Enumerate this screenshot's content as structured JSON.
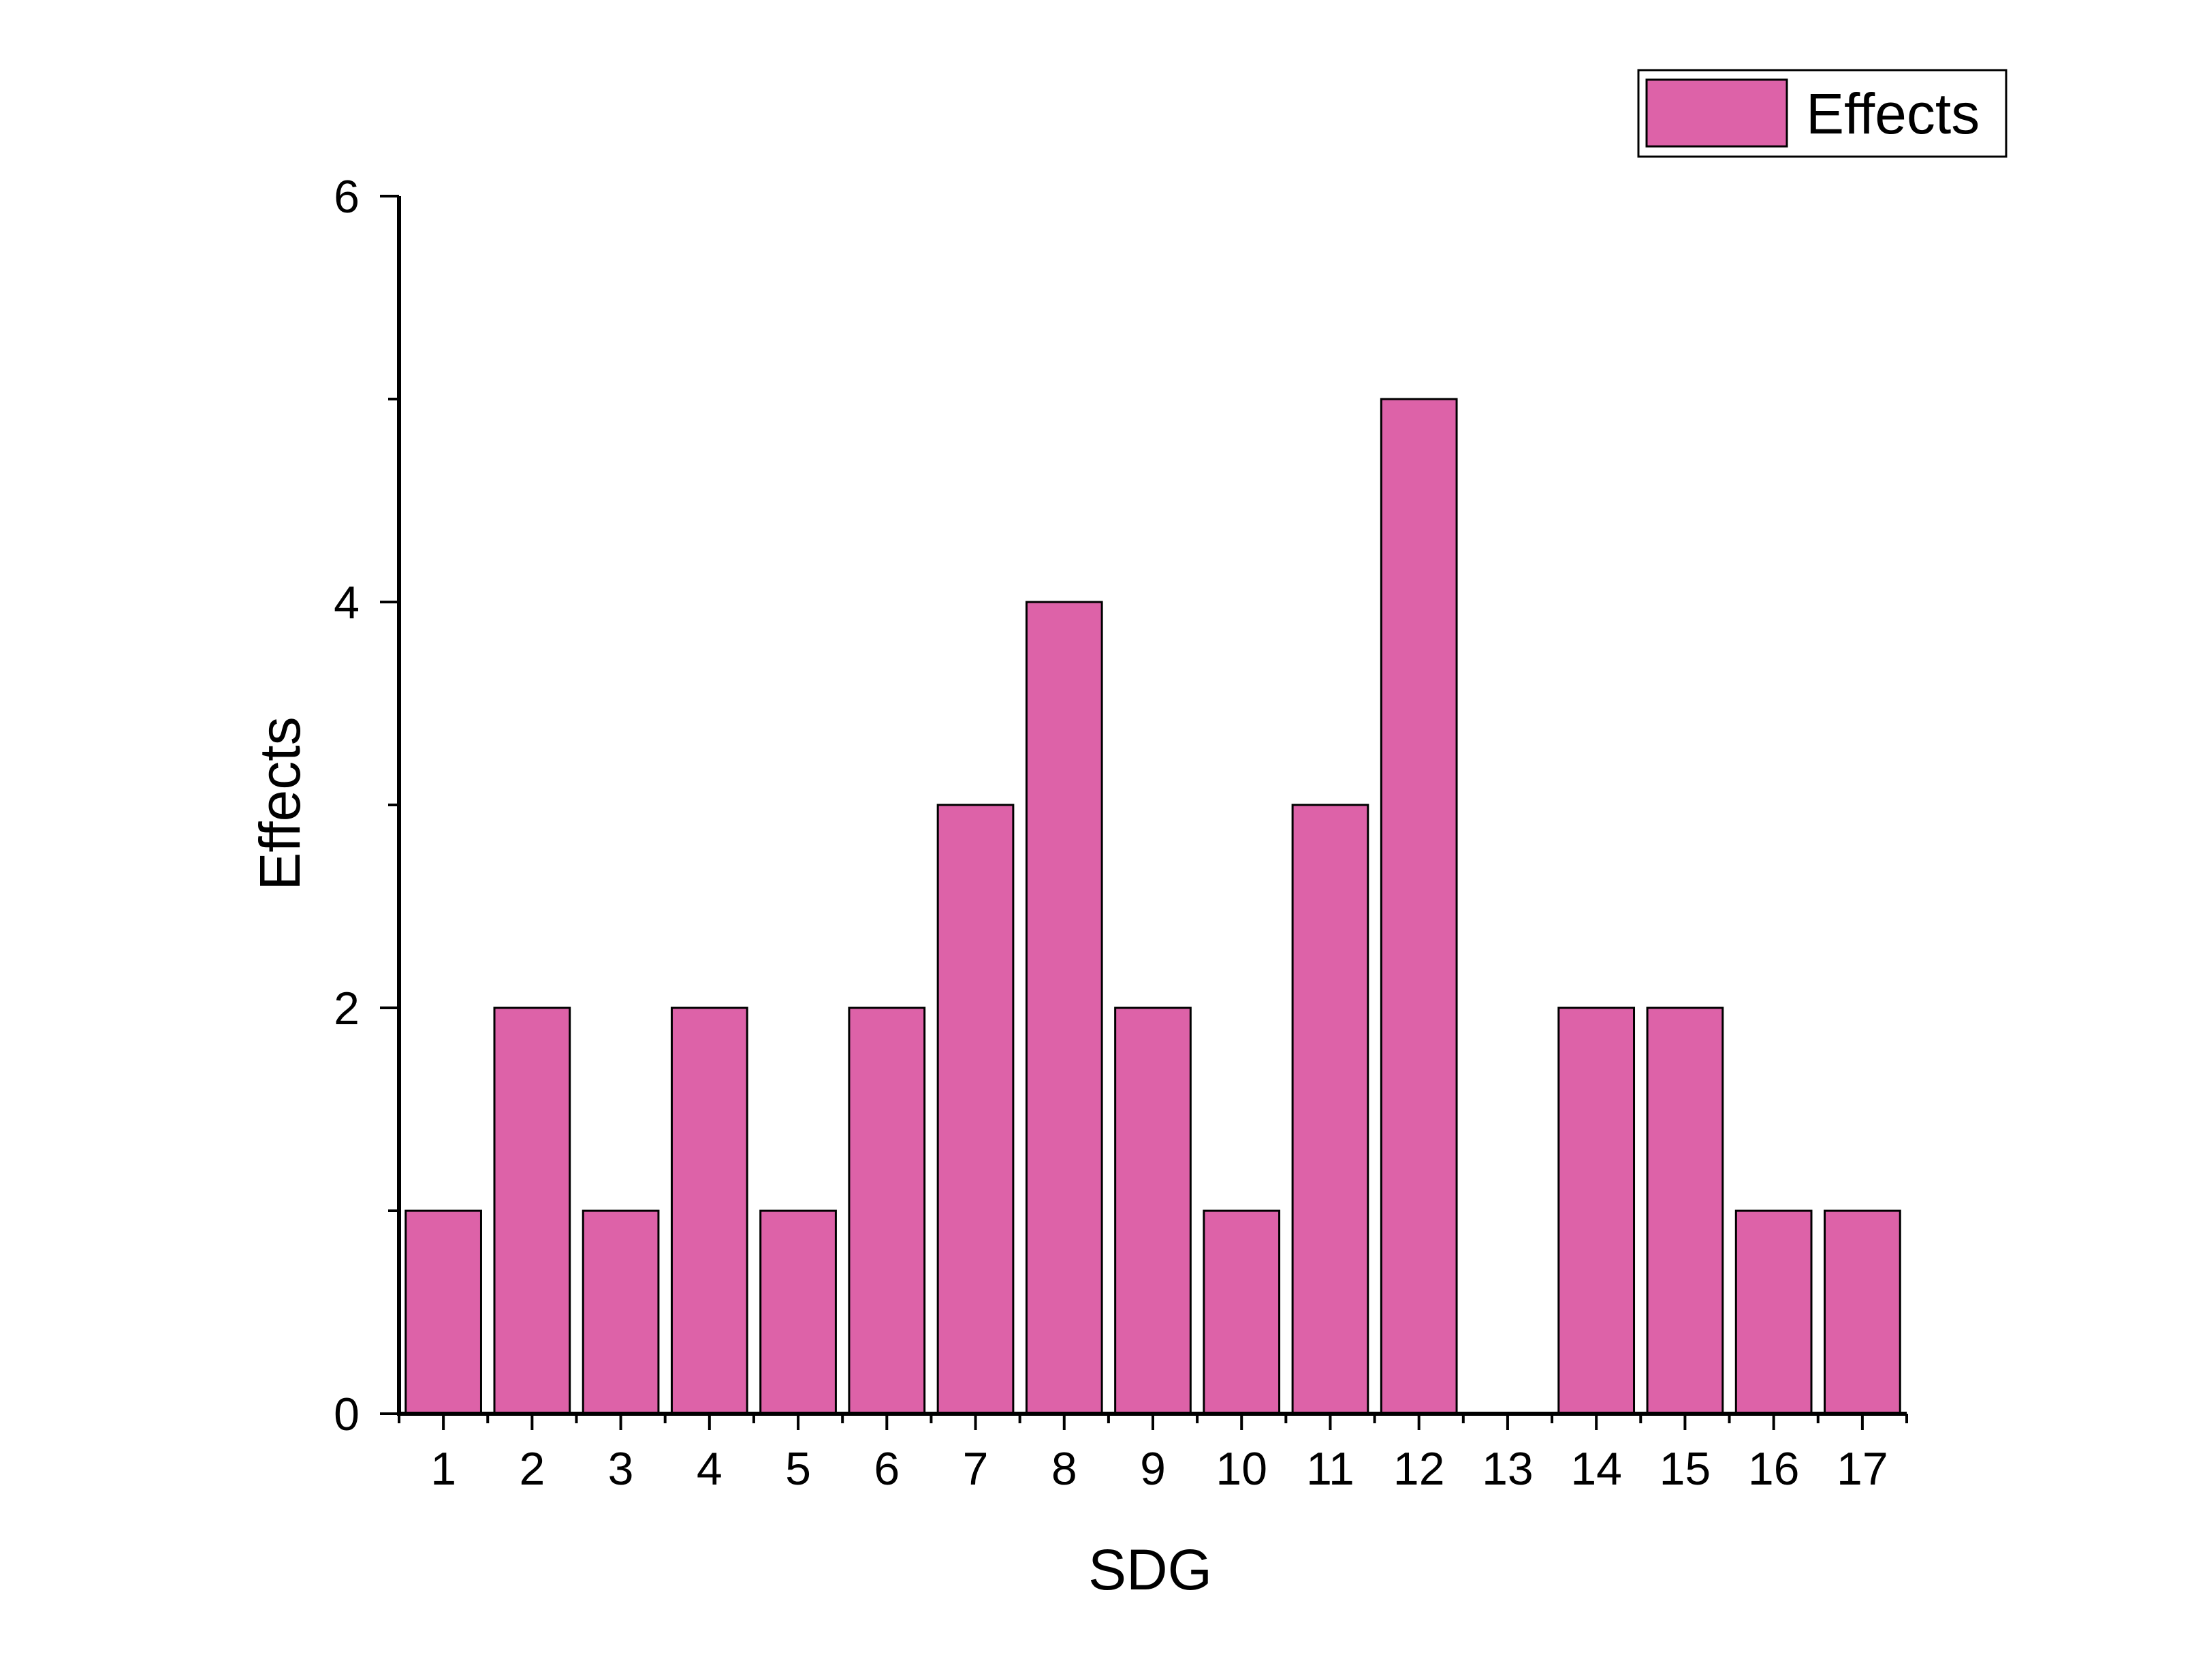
{
  "chart_data": {
    "type": "bar",
    "xlabel": "SDG",
    "ylabel": "Effects",
    "categories": [
      "1",
      "2",
      "3",
      "4",
      "5",
      "6",
      "7",
      "8",
      "9",
      "10",
      "11",
      "12",
      "13",
      "14",
      "15",
      "16",
      "17"
    ],
    "series": [
      {
        "name": "Effects",
        "values": [
          1,
          2,
          1,
          2,
          1,
          2,
          3,
          4,
          2,
          1,
          3,
          5,
          0,
          2,
          2,
          1,
          1
        ],
        "color": "#dd62a8"
      }
    ],
    "ylim": [
      0,
      6
    ],
    "yticks": [
      0,
      2,
      4,
      6
    ],
    "grid": false,
    "legend_position": "top-right"
  }
}
